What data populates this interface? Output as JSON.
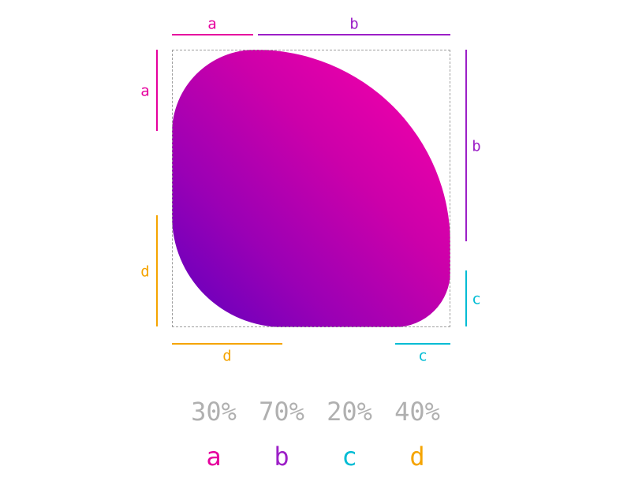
{
  "colors": {
    "a": "#e6009e",
    "b": "#9c1fc7",
    "c": "#00bcd4",
    "d": "#f5a400",
    "percent": "#b0b0b0",
    "frame": "#9e9e9e",
    "gradient_start": "#ff00aa",
    "gradient_end": "#5e00bf"
  },
  "dimension_labels": {
    "top_a": "a",
    "top_b": "b",
    "left_a": "a",
    "right_b": "b",
    "left_d": "d",
    "right_c": "c",
    "bottom_d": "d",
    "bottom_c": "c"
  },
  "radii": {
    "a": "30%",
    "b": "70%",
    "c": "20%",
    "d": "40%"
  },
  "legend": [
    {
      "value": "30%",
      "letter": "a"
    },
    {
      "value": "70%",
      "letter": "b"
    },
    {
      "value": "20%",
      "letter": "c"
    },
    {
      "value": "40%",
      "letter": "d"
    }
  ]
}
